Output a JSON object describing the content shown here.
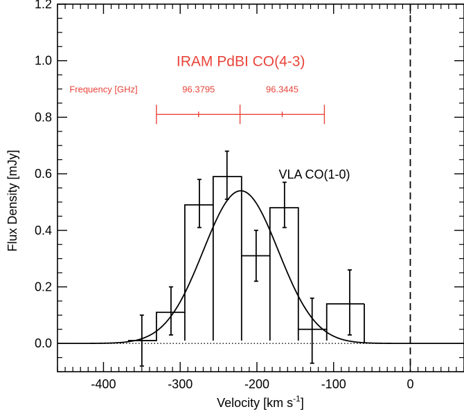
{
  "chart_data": {
    "type": "line",
    "xlabel": "Velocity [km s",
    "xlabel_sup": "-1",
    "xlabel_end": "]",
    "ylabel": "Flux Density [mJy]",
    "xlim": [
      -460,
      70
    ],
    "ylim": [
      -0.1,
      1.2
    ],
    "x_ticks": [
      -400,
      -300,
      -200,
      -100,
      0
    ],
    "y_ticks": [
      0.0,
      0.2,
      0.4,
      0.6,
      0.8,
      1.0,
      1.2
    ],
    "y_tick_labels": [
      "0.0",
      "0.2",
      "0.4",
      "0.6",
      "0.8",
      "1.0",
      "1.2"
    ],
    "histogram": {
      "name": "VLA CO(1-0)",
      "bins": [
        {
          "left": -368,
          "right": -331,
          "value": 0.01
        },
        {
          "left": -331,
          "right": -294,
          "value": 0.11
        },
        {
          "left": -294,
          "right": -257,
          "value": 0.49
        },
        {
          "left": -257,
          "right": -220,
          "value": 0.59
        },
        {
          "left": -220,
          "right": -183,
          "value": 0.31
        },
        {
          "left": -183,
          "right": -146,
          "value": 0.48
        },
        {
          "left": -146,
          "right": -109,
          "value": 0.05
        },
        {
          "left": -109,
          "right": -60,
          "value": 0.14
        }
      ]
    },
    "error_bars": [
      {
        "x": -350,
        "y": 0.01,
        "low": -0.08,
        "high": 0.1
      },
      {
        "x": -312,
        "y": 0.11,
        "low": 0.03,
        "high": 0.2
      },
      {
        "x": -275,
        "y": 0.49,
        "low": 0.41,
        "high": 0.58
      },
      {
        "x": -239,
        "y": 0.59,
        "low": 0.51,
        "high": 0.68
      },
      {
        "x": -201,
        "y": 0.31,
        "low": 0.22,
        "high": 0.4
      },
      {
        "x": -164,
        "y": 0.48,
        "low": 0.41,
        "high": 0.57
      },
      {
        "x": -128,
        "y": 0.05,
        "low": -0.07,
        "high": 0.16
      },
      {
        "x": -79,
        "y": 0.14,
        "low": 0.03,
        "high": 0.26
      }
    ],
    "gaussian_fit": {
      "amplitude": 0.54,
      "center": -221,
      "sigma": 49
    },
    "zero_line": 0.0,
    "vertical_marker_x": 0,
    "labels": {
      "vla": "VLA CO(1-0)",
      "iram": "IRAM PdBI CO(4-3)"
    },
    "frequency_scale": {
      "label": "Frequency [GHz]",
      "y": 0.81,
      "x_start": -331,
      "x_mid": -222,
      "x_end": -112,
      "minor_ticks": [
        -276,
        -167
      ],
      "tick_labels": [
        {
          "text": "96.3795",
          "x": -276
        },
        {
          "text": "96.3445",
          "x": -167
        }
      ]
    },
    "colors": {
      "annotation": "#e8443a",
      "line": "#000000"
    },
    "grid": false
  }
}
